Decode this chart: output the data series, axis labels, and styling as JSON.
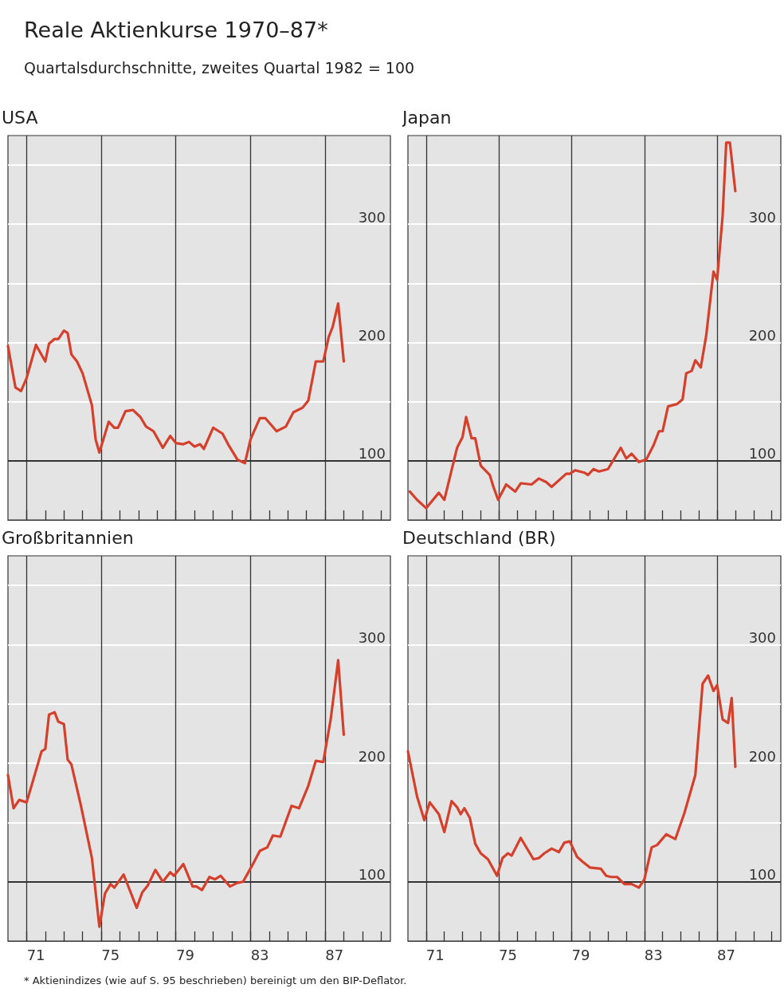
{
  "chart_data": [
    {
      "type": "other",
      "title": "Reale Aktienkurse 1970–87*",
      "subtitle": "Quartalsdurchschnitte, zweites Quartal 1982 = 100",
      "annotations": [
        "* Aktienindizes (wie auf S. 95 beschrieben) bereinigt um den BIP-Deflator."
      ]
    },
    {
      "type": "line",
      "title": "USA",
      "color": "#d4402c",
      "marker": "none",
      "grid": "y",
      "tick_labels": "y",
      "x": [
        69.5,
        69.9,
        70.2,
        70.5,
        71.0,
        71.5,
        71.7,
        72.0,
        72.2,
        72.5,
        72.7,
        72.9,
        73.2,
        73.5,
        74.0,
        74.2,
        74.4,
        74.9,
        75.2,
        75.4,
        75.8,
        76.2,
        76.6,
        76.9,
        77.3,
        77.8,
        78.2,
        78.5,
        78.9,
        79.2,
        79.5,
        79.8,
        80.0,
        80.5,
        81.0,
        81.3,
        81.8,
        82.2,
        82.5,
        83.0,
        83.3,
        83.9,
        84.4,
        84.8,
        85.3,
        85.6,
        86.0,
        86.4,
        86.7,
        86.9,
        87.2,
        87.5
      ],
      "values": [
        197,
        162,
        159,
        170,
        198,
        184,
        199,
        203,
        203,
        210,
        208,
        190,
        184,
        174,
        147,
        118,
        107,
        133,
        128,
        128,
        142,
        143,
        137,
        129,
        125,
        111,
        121,
        115,
        114,
        116,
        112,
        114,
        110,
        128,
        123,
        114,
        101,
        98,
        118,
        136,
        136,
        125,
        129,
        141,
        145,
        151,
        184,
        184,
        205,
        213,
        233,
        184
      ],
      "xlim": [
        69.5,
        90
      ],
      "xticks": [
        {
          "value": 70.5,
          "label": null
        },
        {
          "value": 71.5,
          "label": null
        },
        {
          "value": 72.5,
          "label": null
        },
        {
          "value": 73.5,
          "label": null
        },
        {
          "value": 74.5,
          "label": null
        },
        {
          "value": 75.5,
          "label": null
        },
        {
          "value": 76.5,
          "label": null
        },
        {
          "value": 77.5,
          "label": null
        },
        {
          "value": 78.5,
          "label": null
        },
        {
          "value": 79.5,
          "label": null
        },
        {
          "value": 80.5,
          "label": null
        },
        {
          "value": 81.5,
          "label": null
        },
        {
          "value": 82.5,
          "label": null
        },
        {
          "value": 83.5,
          "label": null
        },
        {
          "value": 84.5,
          "label": null
        },
        {
          "value": 85.5,
          "label": null
        },
        {
          "value": 86.5,
          "label": null
        },
        {
          "value": 87.5,
          "label": null
        },
        {
          "value": 88.5,
          "label": null
        },
        {
          "value": 89.5,
          "label": null
        },
        71,
        75,
        79,
        83,
        87
      ],
      "ylim": [
        50,
        375
      ],
      "yticks": [
        100,
        {
          "value": 150,
          "label": null
        },
        200,
        {
          "value": 250,
          "label": null
        },
        300,
        {
          "value": 350,
          "label": null
        }
      ],
      "ref_lines": [
        {
          "axis": "y",
          "value": 100,
          "color": "#333333"
        },
        {
          "axis": "x",
          "value": 70.5,
          "color": "#333333"
        },
        {
          "axis": "x",
          "value": 74.5,
          "color": "#333333"
        },
        {
          "axis": "x",
          "value": 78.5,
          "color": "#333333"
        },
        {
          "axis": "x",
          "value": 82.5,
          "color": "#333333"
        },
        {
          "axis": "x",
          "value": 86.5,
          "color": "#333333"
        }
      ]
    },
    {
      "type": "line",
      "title": "Japan",
      "color": "#d4402c",
      "marker": "none",
      "grid": "y",
      "tick_labels": "y",
      "x": [
        69.6,
        70.0,
        70.5,
        71.2,
        71.5,
        72.2,
        72.5,
        72.7,
        73.0,
        73.2,
        73.5,
        74.0,
        74.2,
        74.46,
        74.9,
        75.4,
        75.7,
        76.3,
        76.7,
        77.1,
        77.4,
        78.2,
        78.4,
        78.7,
        79.2,
        79.4,
        79.7,
        80.0,
        80.5,
        81.2,
        81.5,
        81.8,
        82.2,
        82.6,
        83.0,
        83.3,
        83.5,
        83.8,
        84.3,
        84.6,
        84.8,
        85.1,
        85.3,
        85.6,
        85.9,
        86.3,
        86.5,
        86.8,
        87.0,
        87.2,
        87.5
      ],
      "values": [
        74,
        67,
        60,
        73,
        67,
        111,
        120,
        137,
        119,
        119,
        96,
        88,
        78,
        67,
        80,
        74,
        81,
        80,
        85,
        82,
        78,
        89,
        89,
        92,
        90,
        88,
        93,
        91,
        93,
        111,
        102,
        106,
        99,
        101,
        113,
        125,
        125,
        146,
        148,
        152,
        174,
        176,
        185,
        179,
        206,
        260,
        253,
        307,
        369,
        369,
        328
      ],
      "xlim": [
        69.5,
        90
      ],
      "xticks": [
        {
          "value": 70.5,
          "label": null
        },
        {
          "value": 71.5,
          "label": null
        },
        {
          "value": 72.5,
          "label": null
        },
        {
          "value": 73.5,
          "label": null
        },
        {
          "value": 74.5,
          "label": null
        },
        {
          "value": 75.5,
          "label": null
        },
        {
          "value": 76.5,
          "label": null
        },
        {
          "value": 77.5,
          "label": null
        },
        {
          "value": 78.5,
          "label": null
        },
        {
          "value": 79.5,
          "label": null
        },
        {
          "value": 80.5,
          "label": null
        },
        {
          "value": 81.5,
          "label": null
        },
        {
          "value": 82.5,
          "label": null
        },
        {
          "value": 83.5,
          "label": null
        },
        {
          "value": 84.5,
          "label": null
        },
        {
          "value": 85.5,
          "label": null
        },
        {
          "value": 86.5,
          "label": null
        },
        {
          "value": 87.5,
          "label": null
        },
        {
          "value": 88.5,
          "label": null
        },
        {
          "value": 89.5,
          "label": null
        },
        71,
        75,
        79,
        83,
        87
      ],
      "ylim": [
        50,
        375
      ],
      "yticks": [
        100,
        {
          "value": 150,
          "label": null
        },
        200,
        {
          "value": 250,
          "label": null
        },
        300,
        {
          "value": 350,
          "label": null
        }
      ],
      "ref_lines": [
        {
          "axis": "y",
          "value": 100,
          "color": "#333333"
        },
        {
          "axis": "x",
          "value": 70.5,
          "color": "#333333"
        },
        {
          "axis": "x",
          "value": 74.5,
          "color": "#333333"
        },
        {
          "axis": "x",
          "value": 78.5,
          "color": "#333333"
        },
        {
          "axis": "x",
          "value": 82.5,
          "color": "#333333"
        },
        {
          "axis": "x",
          "value": 86.5,
          "color": "#333333"
        }
      ]
    },
    {
      "type": "line",
      "title": "Großbritannien",
      "color": "#d4402c",
      "marker": "none",
      "grid": "y",
      "x": [
        69.5,
        69.8,
        70.1,
        70.5,
        70.8,
        71.3,
        71.5,
        71.7,
        72.0,
        72.2,
        72.5,
        72.7,
        72.9,
        73.4,
        74.0,
        74.4,
        74.7,
        75.0,
        75.2,
        75.7,
        76.4,
        76.7,
        77.0,
        77.4,
        77.8,
        78.2,
        78.4,
        78.9,
        79.4,
        79.6,
        79.9,
        80.3,
        80.6,
        80.9,
        81.4,
        81.8,
        82.1,
        82.6,
        83.0,
        83.4,
        83.7,
        84.1,
        84.7,
        85.1,
        85.6,
        86.0,
        86.4,
        86.8,
        87.2,
        87.5
      ],
      "values": [
        190,
        162,
        169,
        167,
        183,
        210,
        212,
        241,
        243,
        235,
        233,
        203,
        199,
        165,
        120,
        62,
        90,
        98,
        95,
        106,
        78,
        91,
        97,
        110,
        100,
        108,
        105,
        115,
        96,
        96,
        93,
        104,
        102,
        105,
        96,
        99,
        100,
        114,
        126,
        129,
        139,
        138,
        164,
        162,
        181,
        202,
        201,
        237,
        287,
        224
      ],
      "xlim": [
        69.5,
        90
      ],
      "xticks": [
        {
          "value": 70.5,
          "label": null
        },
        {
          "value": 71.5,
          "label": null
        },
        {
          "value": 72.5,
          "label": null
        },
        {
          "value": 73.5,
          "label": null
        },
        {
          "value": 74.5,
          "label": null
        },
        {
          "value": 75.5,
          "label": null
        },
        {
          "value": 76.5,
          "label": null
        },
        {
          "value": 77.5,
          "label": null
        },
        {
          "value": 78.5,
          "label": null
        },
        {
          "value": 79.5,
          "label": null
        },
        {
          "value": 80.5,
          "label": null
        },
        {
          "value": 81.5,
          "label": null
        },
        {
          "value": 82.5,
          "label": null
        },
        {
          "value": 83.5,
          "label": null
        },
        {
          "value": 84.5,
          "label": null
        },
        {
          "value": 85.5,
          "label": null
        },
        {
          "value": 86.5,
          "label": null
        },
        {
          "value": 87.5,
          "label": null
        },
        {
          "value": 88.5,
          "label": null
        },
        {
          "value": 89.5,
          "label": null
        },
        71,
        75,
        79,
        83,
        87
      ],
      "ylim": [
        50,
        375
      ],
      "yticks": [
        100,
        {
          "value": 150,
          "label": null
        },
        200,
        {
          "value": 250,
          "label": null
        },
        300,
        {
          "value": 350,
          "label": null
        }
      ],
      "ref_lines": [
        {
          "axis": "y",
          "value": 100,
          "color": "#333333"
        },
        {
          "axis": "x",
          "value": 70.5,
          "color": "#333333"
        },
        {
          "axis": "x",
          "value": 74.5,
          "color": "#333333"
        },
        {
          "axis": "x",
          "value": 78.5,
          "color": "#333333"
        },
        {
          "axis": "x",
          "value": 82.5,
          "color": "#333333"
        },
        {
          "axis": "x",
          "value": 86.5,
          "color": "#333333"
        }
      ]
    },
    {
      "type": "line",
      "title": "Deutschland (BR)",
      "color": "#d4402c",
      "marker": "none",
      "grid": "y",
      "x": [
        69.5,
        70.0,
        70.4,
        70.7,
        71.2,
        71.5,
        71.9,
        72.2,
        72.4,
        72.6,
        72.9,
        73.2,
        73.5,
        73.9,
        74.4,
        74.7,
        75.0,
        75.2,
        75.7,
        76.4,
        76.7,
        77.0,
        77.4,
        77.8,
        78.1,
        78.4,
        78.8,
        79.1,
        79.5,
        80.1,
        80.4,
        80.7,
        81.0,
        81.4,
        81.8,
        82.2,
        82.5,
        82.9,
        83.2,
        83.7,
        84.2,
        84.7,
        85.3,
        85.7,
        86.0,
        86.3,
        86.5,
        86.8,
        87.1,
        87.3,
        87.5
      ],
      "values": [
        210,
        172,
        152,
        167,
        157,
        142,
        168,
        163,
        157,
        162,
        154,
        132,
        124,
        119,
        105,
        120,
        124,
        122,
        137,
        119,
        120,
        124,
        128,
        125,
        133,
        134,
        121,
        117,
        112,
        111,
        105,
        104,
        104,
        98,
        98,
        95,
        102,
        129,
        131,
        140,
        136,
        158,
        190,
        267,
        274,
        261,
        266,
        237,
        234,
        255,
        197
      ],
      "xlim": [
        69.5,
        90
      ],
      "xticks": [
        {
          "value": 70.5,
          "label": null
        },
        {
          "value": 71.5,
          "label": null
        },
        {
          "value": 72.5,
          "label": null
        },
        {
          "value": 73.5,
          "label": null
        },
        {
          "value": 74.5,
          "label": null
        },
        {
          "value": 75.5,
          "label": null
        },
        {
          "value": 76.5,
          "label": null
        },
        {
          "value": 77.5,
          "label": null
        },
        {
          "value": 78.5,
          "label": null
        },
        {
          "value": 79.5,
          "label": null
        },
        {
          "value": 80.5,
          "label": null
        },
        {
          "value": 81.5,
          "label": null
        },
        {
          "value": 82.5,
          "label": null
        },
        {
          "value": 83.5,
          "label": null
        },
        {
          "value": 84.5,
          "label": null
        },
        {
          "value": 85.5,
          "label": null
        },
        {
          "value": 86.5,
          "label": null
        },
        {
          "value": 87.5,
          "label": null
        },
        {
          "value": 88.5,
          "label": null
        },
        {
          "value": 89.5,
          "label": null
        },
        71,
        75,
        79,
        83,
        87
      ],
      "ylim": [
        50,
        375
      ],
      "yticks": [
        100,
        {
          "value": 150,
          "label": null
        },
        200,
        {
          "value": 250,
          "label": null
        },
        300,
        {
          "value": 350,
          "label": null
        }
      ],
      "ref_lines": [
        {
          "axis": "y",
          "value": 100,
          "color": "#333333"
        },
        {
          "axis": "x",
          "value": 70.5,
          "color": "#333333"
        },
        {
          "axis": "x",
          "value": 74.5,
          "color": "#333333"
        },
        {
          "axis": "x",
          "value": 78.5,
          "color": "#333333"
        },
        {
          "axis": "x",
          "value": 82.5,
          "color": "#333333"
        },
        {
          "axis": "x",
          "value": 86.5,
          "color": "#333333"
        }
      ]
    }
  ]
}
